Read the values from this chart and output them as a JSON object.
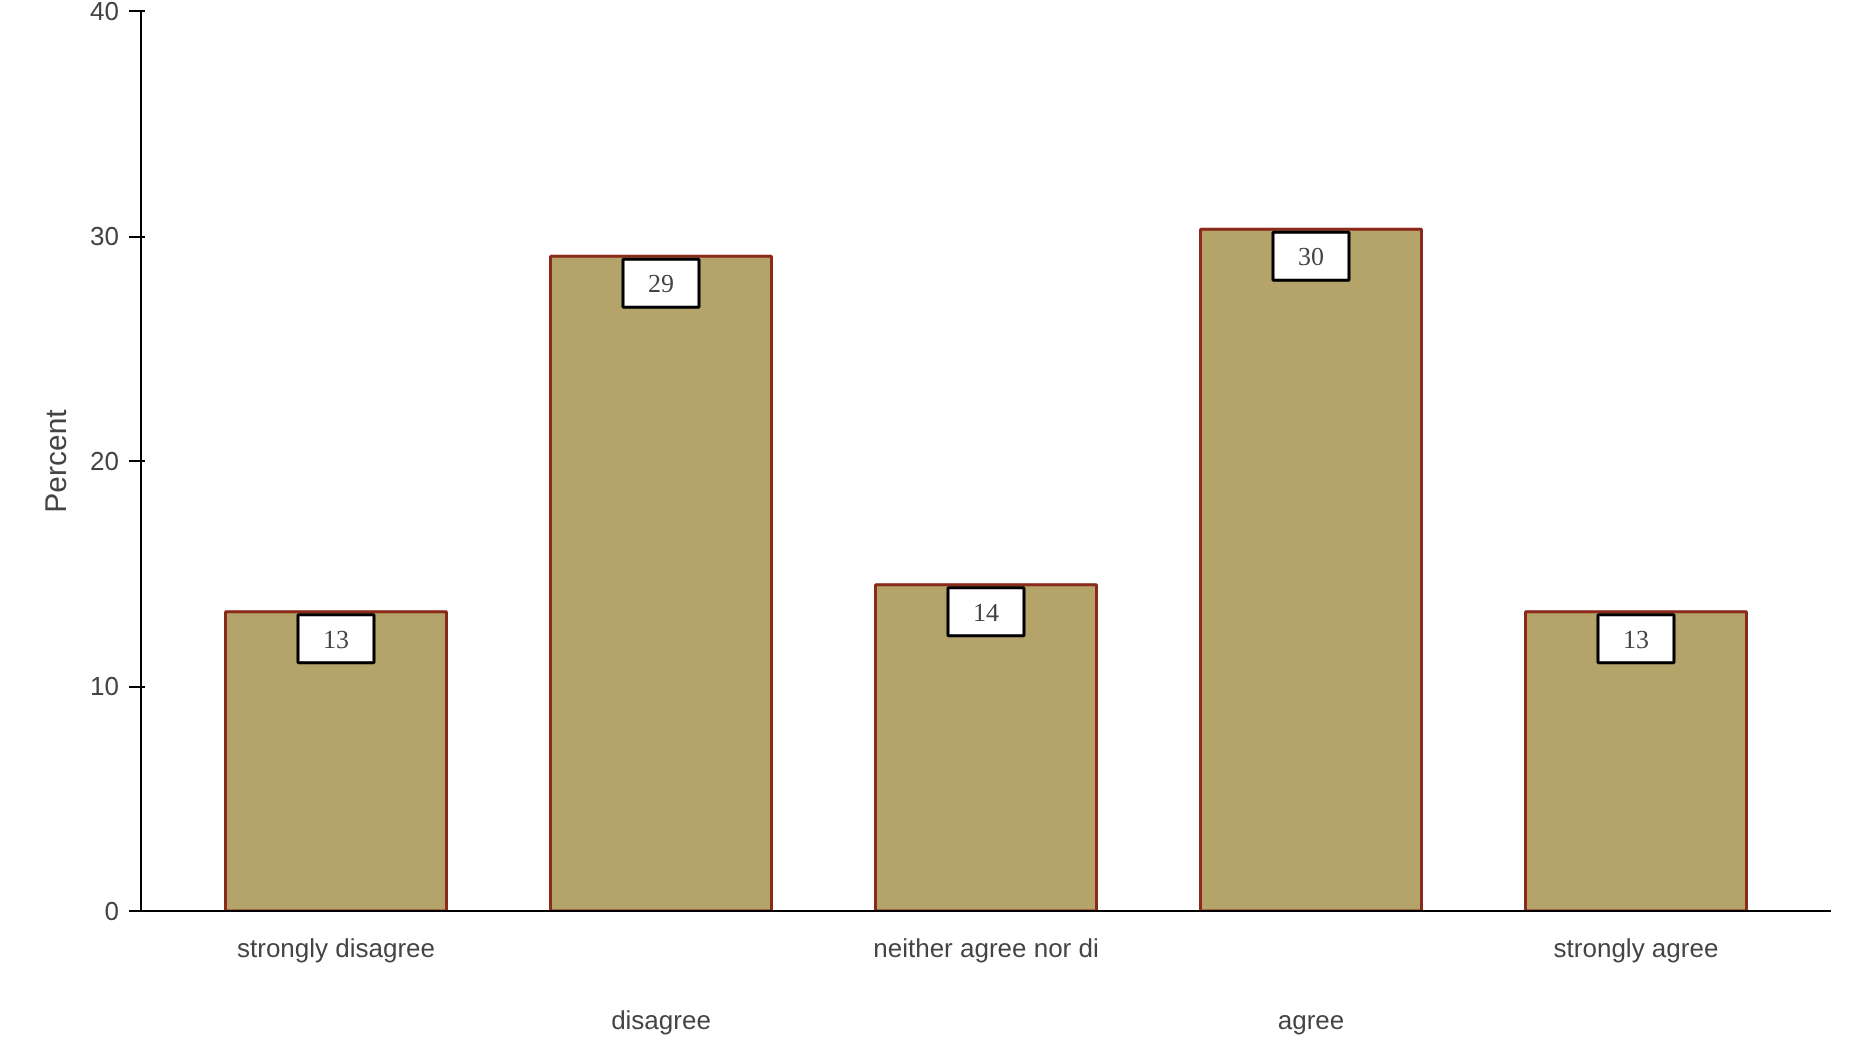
{
  "chart_data": {
    "type": "bar",
    "ylabel": "Percent",
    "categories": [
      "strongly disagree",
      "disagree",
      "neither agree nor di",
      "agree",
      "strongly agree"
    ],
    "values": [
      13.3,
      29.1,
      14.5,
      30.3,
      13.3
    ],
    "value_labels": [
      "13",
      "29",
      "14",
      "30",
      "13"
    ],
    "color": "#b5a46a",
    "ylim": [
      0,
      40
    ],
    "yticks": [
      0,
      10,
      20,
      30,
      40
    ],
    "grid": false
  }
}
